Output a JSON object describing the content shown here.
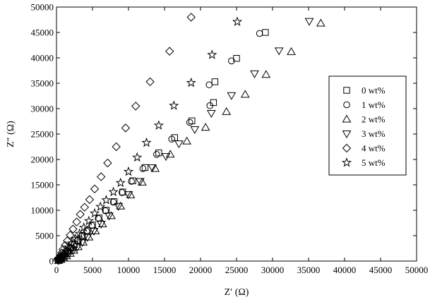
{
  "chart_data": {
    "type": "scatter",
    "title": "",
    "xlabel": "Z′ (Ω)",
    "ylabel": "Z″ (Ω)",
    "xlim": [
      0,
      50000
    ],
    "ylim": [
      0,
      50000
    ],
    "xticks": [
      "0",
      "5000",
      "10000",
      "15000",
      "20000",
      "25000",
      "30000",
      "35000",
      "40000",
      "45000",
      "50000"
    ],
    "yticks": [
      "0",
      "5000",
      "10000",
      "15000",
      "20000",
      "25000",
      "30000",
      "35000",
      "40000",
      "45000",
      "50000"
    ],
    "grid": false,
    "legend_position": "right",
    "series": [
      {
        "name": "0 wt%",
        "marker": "square",
        "points": [
          [
            300,
            200
          ],
          [
            600,
            500
          ],
          [
            900,
            900
          ],
          [
            1200,
            1400
          ],
          [
            1600,
            2000
          ],
          [
            2000,
            2600
          ],
          [
            2500,
            3300
          ],
          [
            3000,
            4100
          ],
          [
            3600,
            5000
          ],
          [
            4300,
            6000
          ],
          [
            5000,
            7100
          ],
          [
            5900,
            8500
          ],
          [
            6900,
            10000
          ],
          [
            8000,
            11700
          ],
          [
            9200,
            13600
          ],
          [
            10600,
            15800
          ],
          [
            12300,
            18400
          ],
          [
            14200,
            21300
          ],
          [
            16400,
            24300
          ],
          [
            18800,
            27600
          ],
          [
            21800,
            31200
          ],
          [
            22000,
            35300
          ],
          [
            25000,
            39900
          ],
          [
            29000,
            45000
          ]
        ]
      },
      {
        "name": "1 wt%",
        "marker": "circle",
        "points": [
          [
            250,
            200
          ],
          [
            500,
            500
          ],
          [
            800,
            900
          ],
          [
            1100,
            1300
          ],
          [
            1500,
            1900
          ],
          [
            1900,
            2500
          ],
          [
            2400,
            3200
          ],
          [
            2900,
            4000
          ],
          [
            3500,
            4900
          ],
          [
            4200,
            5900
          ],
          [
            4900,
            7000
          ],
          [
            5800,
            8400
          ],
          [
            6800,
            9900
          ],
          [
            7900,
            11600
          ],
          [
            9100,
            13500
          ],
          [
            10400,
            15700
          ],
          [
            12000,
            18200
          ],
          [
            13900,
            21000
          ],
          [
            16000,
            24000
          ],
          [
            18500,
            27300
          ],
          [
            21300,
            30600
          ],
          [
            21200,
            34700
          ],
          [
            24300,
            39400
          ],
          [
            28200,
            44800
          ]
        ]
      },
      {
        "name": "2 wt%",
        "marker": "triangle-up",
        "points": [
          [
            300,
            100
          ],
          [
            600,
            300
          ],
          [
            1000,
            600
          ],
          [
            1400,
            1000
          ],
          [
            1900,
            1500
          ],
          [
            2400,
            2100
          ],
          [
            3000,
            2800
          ],
          [
            3700,
            3700
          ],
          [
            4500,
            4700
          ],
          [
            5400,
            5900
          ],
          [
            6400,
            7300
          ],
          [
            7600,
            8900
          ],
          [
            8900,
            10800
          ],
          [
            10300,
            13000
          ],
          [
            11900,
            15500
          ],
          [
            13700,
            18200
          ],
          [
            15800,
            21000
          ],
          [
            18100,
            23600
          ],
          [
            20700,
            26300
          ],
          [
            23600,
            29400
          ],
          [
            26200,
            32800
          ],
          [
            29100,
            36700
          ],
          [
            32600,
            41200
          ],
          [
            36700,
            46800
          ]
        ]
      },
      {
        "name": "3 wt%",
        "marker": "triangle-down",
        "points": [
          [
            300,
            100
          ],
          [
            600,
            300
          ],
          [
            1000,
            600
          ],
          [
            1400,
            1000
          ],
          [
            1800,
            1500
          ],
          [
            2300,
            2100
          ],
          [
            2900,
            2800
          ],
          [
            3600,
            3700
          ],
          [
            4300,
            4700
          ],
          [
            5200,
            5900
          ],
          [
            6200,
            7300
          ],
          [
            7300,
            8900
          ],
          [
            8600,
            10800
          ],
          [
            10000,
            13100
          ],
          [
            11600,
            15700
          ],
          [
            13300,
            18400
          ],
          [
            15200,
            20600
          ],
          [
            17000,
            23100
          ],
          [
            19200,
            25900
          ],
          [
            21500,
            29100
          ],
          [
            24300,
            32600
          ],
          [
            27500,
            36900
          ],
          [
            30900,
            41400
          ],
          [
            35100,
            47200
          ]
        ]
      },
      {
        "name": "4 wt%",
        "marker": "diamond",
        "points": [
          [
            150,
            200
          ],
          [
            300,
            500
          ],
          [
            500,
            1000
          ],
          [
            700,
            1600
          ],
          [
            900,
            2300
          ],
          [
            1200,
            3100
          ],
          [
            1500,
            4000
          ],
          [
            1900,
            5100
          ],
          [
            2300,
            6300
          ],
          [
            2800,
            7700
          ],
          [
            3300,
            9200
          ],
          [
            3900,
            10600
          ],
          [
            4600,
            12100
          ],
          [
            5300,
            14200
          ],
          [
            6200,
            16600
          ],
          [
            7100,
            19300
          ],
          [
            8300,
            22500
          ],
          [
            9600,
            26200
          ],
          [
            11000,
            30500
          ],
          [
            13000,
            35300
          ],
          [
            15700,
            41300
          ],
          [
            18700,
            48000
          ]
        ]
      },
      {
        "name": "5 wt%",
        "marker": "star",
        "points": [
          [
            200,
            200
          ],
          [
            400,
            500
          ],
          [
            700,
            900
          ],
          [
            1000,
            1400
          ],
          [
            1300,
            2000
          ],
          [
            1700,
            2700
          ],
          [
            2100,
            3500
          ],
          [
            2600,
            4400
          ],
          [
            3200,
            5400
          ],
          [
            3800,
            6600
          ],
          [
            4500,
            7900
          ],
          [
            5300,
            9400
          ],
          [
            6100,
            10700
          ],
          [
            6900,
            12000
          ],
          [
            7900,
            13600
          ],
          [
            8900,
            15400
          ],
          [
            10000,
            17600
          ],
          [
            11200,
            20400
          ],
          [
            12500,
            23300
          ],
          [
            14200,
            26700
          ],
          [
            16300,
            30600
          ],
          [
            18700,
            35100
          ],
          [
            21600,
            40600
          ],
          [
            25100,
            47100
          ]
        ]
      }
    ]
  }
}
